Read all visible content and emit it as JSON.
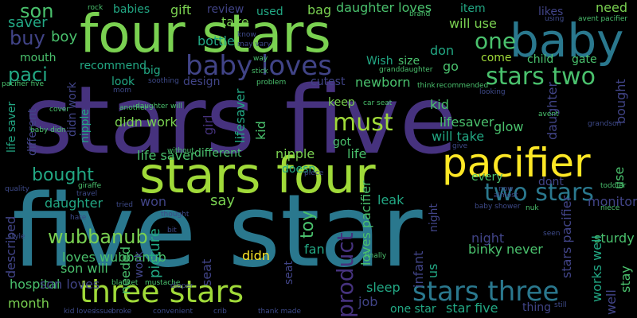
{
  "palette": {
    "background": "#000000",
    "dark_purple": "#46327e",
    "purple": "#482878",
    "blue": "#365c8d",
    "steel": "#3e4a89",
    "teal": "#277f8e",
    "cyan": "#1fa187",
    "green": "#4ac16d",
    "lime": "#a0da39",
    "yellow": "#fde725"
  },
  "words": [
    "four stars",
    "baby",
    "stars five",
    "five star",
    "stars four",
    "pacifier",
    "baby loves",
    "must",
    "three stars",
    "stars three",
    "two stars",
    "one",
    "stars two",
    "son",
    "saver",
    "buy",
    "boy",
    "paci",
    "mouth",
    "recommend",
    "babies",
    "gift",
    "review",
    "take",
    "used",
    "bag",
    "daughter loves",
    "item",
    "will use",
    "likes",
    "need",
    "bottle",
    "big",
    "design",
    "cutest",
    "newborn",
    "Wish",
    "size",
    "don",
    "go",
    "come",
    "child",
    "gate",
    "look",
    "didn work",
    "life saver",
    "different",
    "nipple",
    "got",
    "life",
    "doesn",
    "keep",
    "kid",
    "lifesaver",
    "will take",
    "glow",
    "bought",
    "use",
    "every",
    "dont",
    "won",
    "say",
    "leak",
    "daughter",
    "wubbanub",
    "loves wubbanub",
    "son will",
    "described",
    "hospital",
    "son loves",
    "month",
    "needed",
    "work",
    "picture",
    "seat",
    "didn",
    "fan",
    "toy",
    "product",
    "loves pacifier",
    "infant",
    "us",
    "night",
    "binky never",
    "sleep",
    "job",
    "one star",
    "star five",
    "stars pacifier",
    "works well",
    "monitor",
    "sturdy",
    "well",
    "stay",
    "thing",
    "girl",
    "received",
    "stroller",
    "baby will",
    "pictured",
    "time",
    "color",
    "soothie",
    "don buy",
    "hold",
    "life",
    "sleep"
  ],
  "small_words": [
    "rock",
    "brand",
    "using",
    "avent pacifier",
    "breastfed baby",
    "know",
    "cover",
    "way",
    "stick",
    "problem",
    "mom",
    "soothing",
    "daughter will",
    "grandson",
    "baby didn",
    "without",
    "give",
    "another",
    "piece",
    "quality",
    "giraffe",
    "travel",
    "tried",
    "hate",
    "bit",
    "thought",
    "style",
    "blanket",
    "mustache",
    "diaper",
    "convenient",
    "crib",
    "thank made",
    "kid loves",
    "issue",
    "broke",
    "finally",
    "niece",
    "toddler",
    "baby shower",
    "nuk",
    "seen",
    "still",
    "almost",
    "now",
    "may vary",
    "car seat",
    "granddaughter",
    "think",
    "recommended",
    "looking",
    "animal",
    "pacifier five",
    "avent",
    "baby likes",
    "definitely",
    "parent",
    "lot",
    "junk",
    "part"
  ]
}
